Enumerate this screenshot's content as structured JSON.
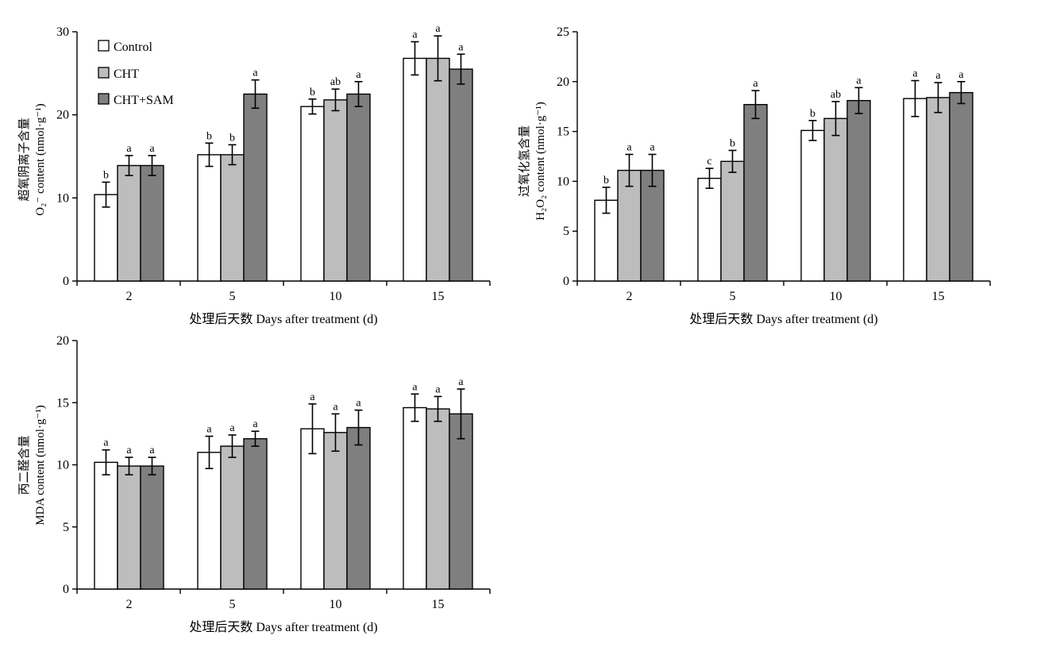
{
  "colors": {
    "Control": "#ffffff",
    "CHT": "#bdbdbd",
    "CHT+SAM": "#7f7f7f"
  },
  "legend": [
    "Control",
    "CHT",
    "CHT+SAM"
  ],
  "chart_data": [
    {
      "type": "bar",
      "panel": "superoxide",
      "categories": [
        "2",
        "5",
        "10",
        "15"
      ],
      "ylim": [
        0,
        30
      ],
      "yticks": [
        0,
        10,
        20,
        30
      ],
      "ylabel_cn": "超氧阴离子含量",
      "ylabel_en": "O₂⁻ content (nmol·g⁻¹)",
      "xlabel": "处理后天数 Days after treatment (d)",
      "series": [
        {
          "name": "Control",
          "values": [
            10.4,
            15.2,
            21.0,
            26.8
          ],
          "errors": [
            1.5,
            1.4,
            0.9,
            2.0
          ],
          "letters": [
            "b",
            "b",
            "b",
            "a"
          ]
        },
        {
          "name": "CHT",
          "values": [
            13.9,
            15.2,
            21.8,
            26.8
          ],
          "errors": [
            1.2,
            1.2,
            1.3,
            2.7
          ],
          "letters": [
            "a",
            "b",
            "ab",
            "a"
          ]
        },
        {
          "name": "CHT+SAM",
          "values": [
            13.9,
            22.5,
            22.5,
            25.5
          ],
          "errors": [
            1.2,
            1.7,
            1.5,
            1.8
          ],
          "letters": [
            "a",
            "a",
            "a",
            "a"
          ]
        }
      ]
    },
    {
      "type": "bar",
      "panel": "hydrogen-peroxide",
      "categories": [
        "2",
        "5",
        "10",
        "15"
      ],
      "ylim": [
        0,
        25
      ],
      "yticks": [
        0,
        5,
        10,
        15,
        20,
        25
      ],
      "ylabel_cn": "过氧化氢含量",
      "ylabel_en": "H₂O₂ content (nmol·g⁻¹)",
      "xlabel": "处理后天数 Days after treatment (d)",
      "series": [
        {
          "name": "Control",
          "values": [
            8.1,
            10.3,
            15.1,
            18.3
          ],
          "errors": [
            1.3,
            1.0,
            1.0,
            1.8
          ],
          "letters": [
            "b",
            "c",
            "b",
            "a"
          ]
        },
        {
          "name": "CHT",
          "values": [
            11.1,
            12.0,
            16.3,
            18.4
          ],
          "errors": [
            1.6,
            1.1,
            1.7,
            1.5
          ],
          "letters": [
            "a",
            "b",
            "ab",
            "a"
          ]
        },
        {
          "name": "CHT+SAM",
          "values": [
            11.1,
            17.7,
            18.1,
            18.9
          ],
          "errors": [
            1.6,
            1.4,
            1.3,
            1.1
          ],
          "letters": [
            "a",
            "a",
            "a",
            "a"
          ]
        }
      ]
    },
    {
      "type": "bar",
      "panel": "mda",
      "categories": [
        "2",
        "5",
        "10",
        "15"
      ],
      "ylim": [
        0,
        20
      ],
      "yticks": [
        0,
        5,
        10,
        15,
        20
      ],
      "ylabel_cn": "丙二醛含量",
      "ylabel_en": "MDA content (nmol·g⁻¹)",
      "xlabel": "处理后天数 Days after treatment (d)",
      "series": [
        {
          "name": "Control",
          "values": [
            10.2,
            11.0,
            12.9,
            14.6
          ],
          "errors": [
            1.0,
            1.3,
            2.0,
            1.1
          ],
          "letters": [
            "a",
            "a",
            "a",
            "a"
          ]
        },
        {
          "name": "CHT",
          "values": [
            9.9,
            11.5,
            12.6,
            14.5
          ],
          "errors": [
            0.7,
            0.9,
            1.5,
            1.0
          ],
          "letters": [
            "a",
            "a",
            "a",
            "a"
          ]
        },
        {
          "name": "CHT+SAM",
          "values": [
            9.9,
            12.1,
            13.0,
            14.1
          ],
          "errors": [
            0.7,
            0.6,
            1.4,
            2.0
          ],
          "letters": [
            "a",
            "a",
            "a",
            "a"
          ]
        }
      ]
    }
  ]
}
